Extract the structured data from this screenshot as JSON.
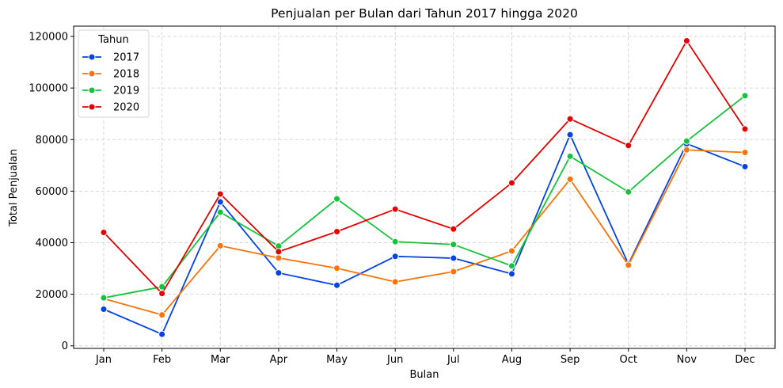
{
  "chart_data": {
    "type": "line",
    "title": "Penjualan per Bulan dari Tahun 2017 hingga 2020",
    "xlabel": "Bulan",
    "ylabel": "Total Penjualan",
    "categories": [
      "Jan",
      "Feb",
      "Mar",
      "Apr",
      "May",
      "Jun",
      "Jul",
      "Aug",
      "Sep",
      "Oct",
      "Nov",
      "Dec"
    ],
    "ylim": [
      -1000,
      124000
    ],
    "yticks": [
      0,
      20000,
      40000,
      60000,
      80000,
      100000,
      120000
    ],
    "grid": true,
    "legend": {
      "title": "Tahun",
      "placement": "top-left"
    },
    "series": [
      {
        "name": "2017",
        "color": "#0343df",
        "values": [
          14200,
          4500,
          55800,
          28300,
          23500,
          34700,
          34000,
          27900,
          81900,
          31700,
          78400,
          69500
        ]
      },
      {
        "name": "2018",
        "color": "#f97306",
        "values": [
          18300,
          12000,
          38800,
          34100,
          30100,
          24800,
          28800,
          36800,
          64600,
          31300,
          76000,
          75000
        ]
      },
      {
        "name": "2019",
        "color": "#15c33b",
        "values": [
          18600,
          22900,
          51800,
          38700,
          57000,
          40400,
          39300,
          31000,
          73500,
          59700,
          79400,
          97000
        ]
      },
      {
        "name": "2020",
        "color": "#e50000",
        "values": [
          44000,
          20300,
          58900,
          36500,
          44300,
          53000,
          45300,
          63200,
          88000,
          77700,
          118300,
          84100
        ]
      }
    ]
  }
}
